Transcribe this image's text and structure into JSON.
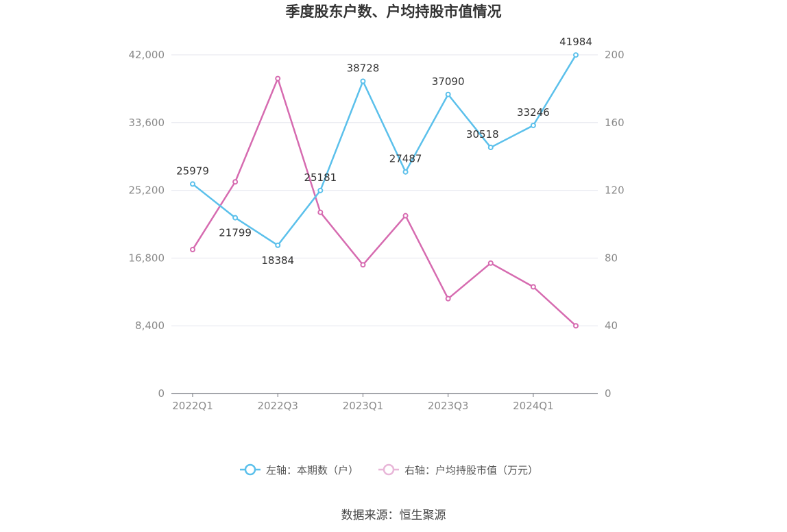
{
  "chart_data": {
    "type": "line",
    "title": "季度股东户数、户均持股市值情况",
    "categories": [
      "2022Q1",
      "2022Q2",
      "2022Q3",
      "2022Q4",
      "2023Q1",
      "2023Q2",
      "2023Q3",
      "2023Q4",
      "2024Q1",
      "2024Q2"
    ],
    "x_tick_labels": [
      "2022Q1",
      "2022Q3",
      "2023Q1",
      "2023Q3",
      "2024Q1"
    ],
    "series": [
      {
        "name": "左轴：本期数（户）",
        "axis": "left",
        "color": "#5bc0eb",
        "values": [
          25979,
          21799,
          18384,
          25181,
          38728,
          27487,
          37090,
          30518,
          33246,
          41984
        ],
        "labels": [
          "25979",
          "21799",
          "18384",
          "25181",
          "38728",
          "27487",
          "37090",
          "30518",
          "33246",
          "41984"
        ]
      },
      {
        "name": "右轴：户均持股市值（万元）",
        "axis": "right",
        "color": "#d66bb0",
        "values": [
          85,
          125,
          186,
          107,
          76,
          105,
          56,
          77,
          63,
          40
        ]
      }
    ],
    "left_axis": {
      "min": 0,
      "max": 42000,
      "ticks": [
        "0",
        "8,400",
        "16,800",
        "25,200",
        "33,600",
        "42,000"
      ],
      "tick_values": [
        0,
        8400,
        16800,
        25200,
        33600,
        42000
      ]
    },
    "right_axis": {
      "min": 0,
      "max": 200,
      "ticks": [
        "0",
        "40",
        "80",
        "120",
        "160",
        "200"
      ],
      "tick_values": [
        0,
        40,
        80,
        120,
        160,
        200
      ]
    },
    "grid": true,
    "legend_position": "bottom"
  },
  "source": "数据来源：恒生聚源"
}
